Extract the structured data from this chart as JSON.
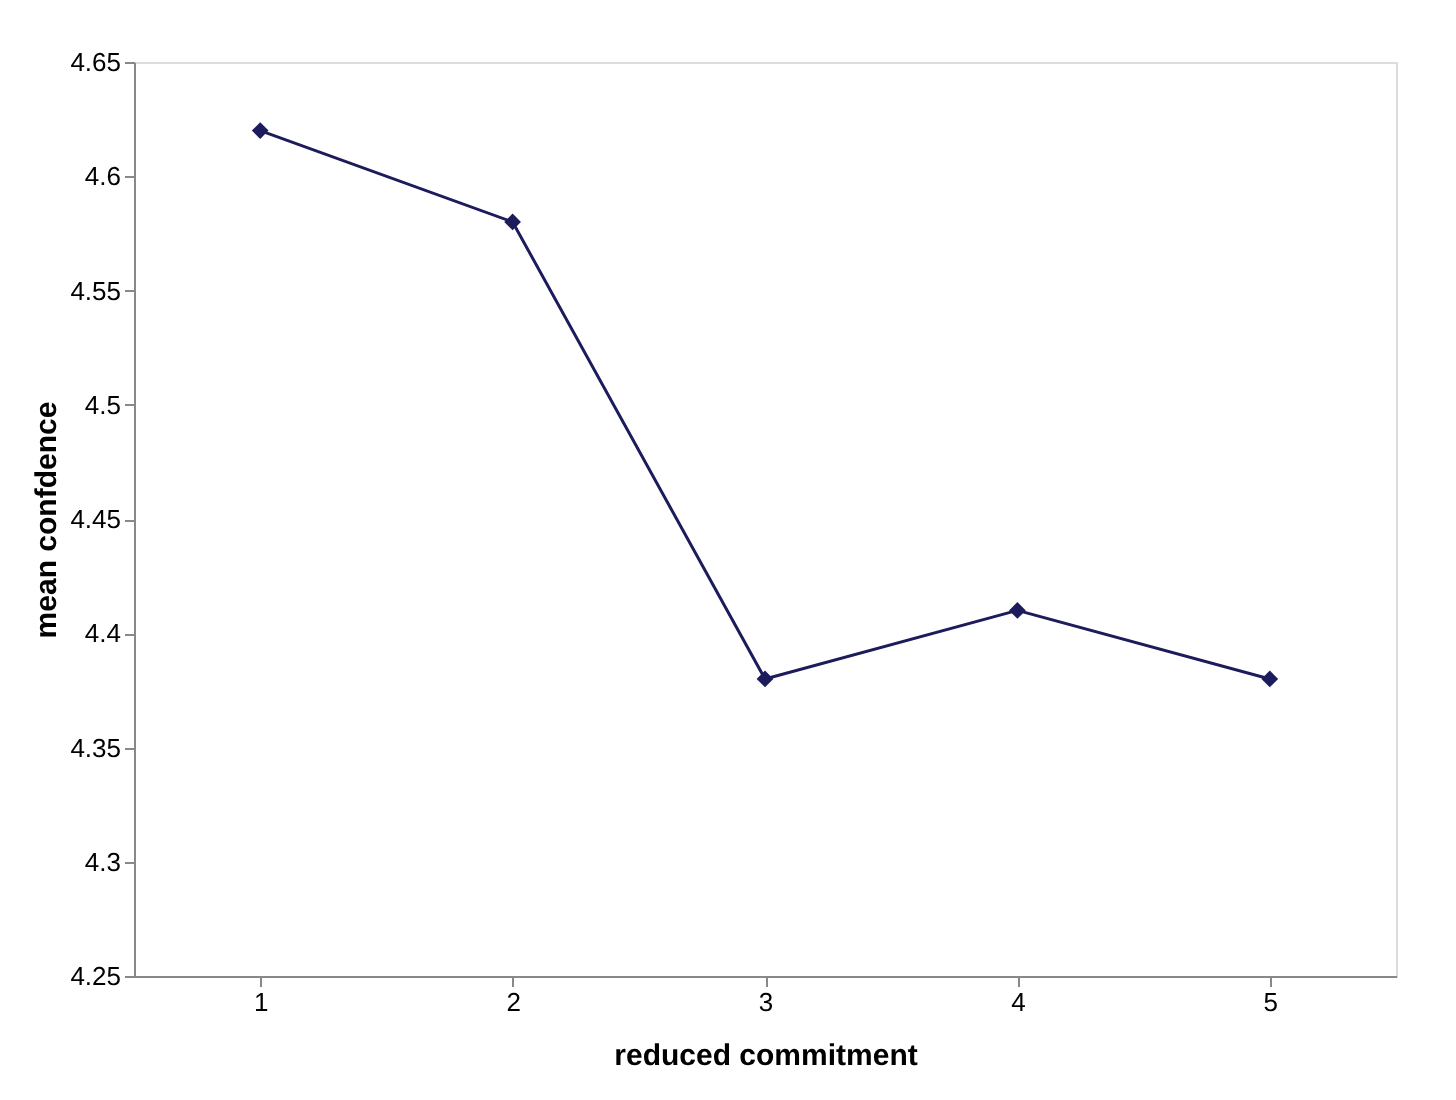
{
  "chart_data": {
    "type": "line",
    "xlabel": "reduced commitment",
    "ylabel": "mean confdence",
    "categories": [
      "1",
      "2",
      "3",
      "4",
      "5"
    ],
    "series": [
      {
        "color": "#1c1c5c",
        "values": [
          4.62,
          4.58,
          4.38,
          4.41,
          4.38
        ]
      }
    ],
    "ylim": [
      4.25,
      4.65
    ],
    "yticks": [
      4.25,
      4.3,
      4.35,
      4.4,
      4.45,
      4.5,
      4.55,
      4.6,
      4.65
    ],
    "grid": false,
    "legend": false,
    "marker": "diamond",
    "line_style": "solid"
  }
}
